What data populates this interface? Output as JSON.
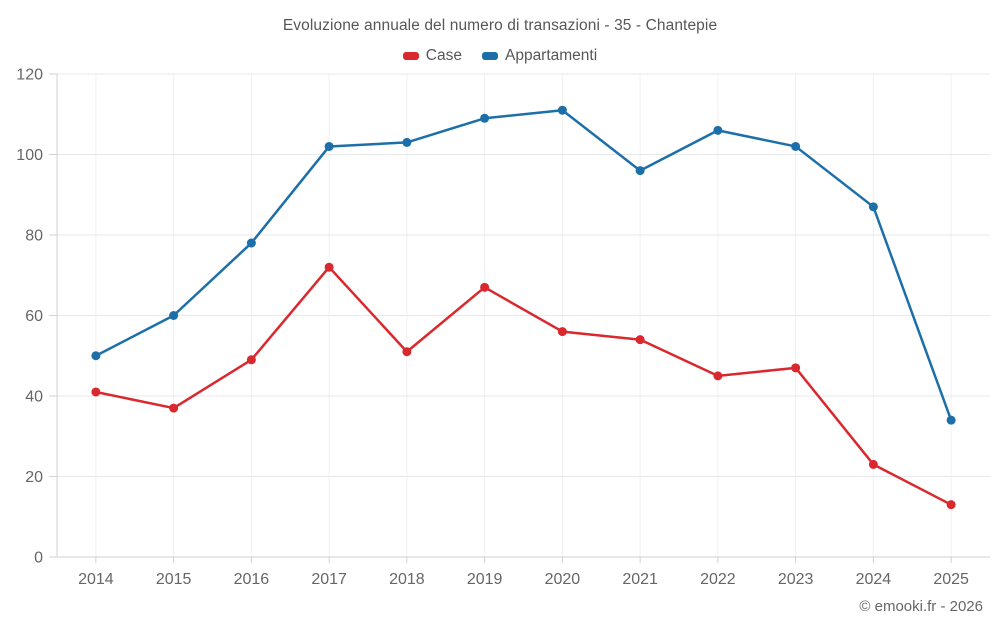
{
  "chart_data": {
    "type": "line",
    "title": "Evoluzione annuale del numero di transazioni - 35 - Chantepie",
    "categories": [
      "2014",
      "2015",
      "2016",
      "2017",
      "2018",
      "2019",
      "2020",
      "2021",
      "2022",
      "2023",
      "2024",
      "2025"
    ],
    "series": [
      {
        "name": "Case",
        "color": "#d9282e",
        "values": [
          41,
          37,
          49,
          72,
          51,
          67,
          56,
          54,
          45,
          47,
          23,
          13
        ]
      },
      {
        "name": "Appartamenti",
        "color": "#1c6fa9",
        "values": [
          50,
          60,
          78,
          102,
          103,
          109,
          111,
          96,
          106,
          102,
          87,
          34
        ]
      }
    ],
    "xlabel": "",
    "ylabel": "",
    "ylim": [
      0,
      120
    ],
    "yticks": [
      0,
      20,
      40,
      60,
      80,
      100,
      120
    ],
    "grid": true,
    "legend_position": "top",
    "marker": "circle"
  },
  "colors": {
    "title_text": "#565759",
    "axis_text": "#666666",
    "axis_line": "#d0d0d0",
    "gridline_h": "#e8e8e8",
    "gridline_v": "#f0f0f0",
    "background": "#ffffff"
  },
  "footer": {
    "copyright": "© emooki.fr - 2026"
  }
}
